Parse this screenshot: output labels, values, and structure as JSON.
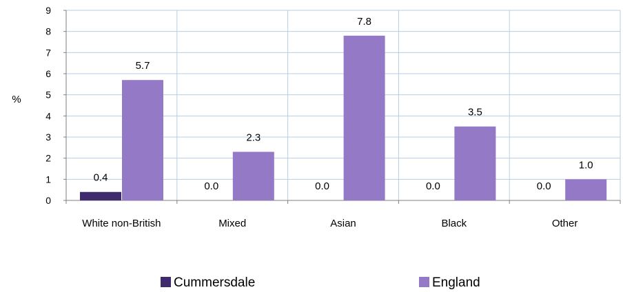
{
  "chart_data": {
    "type": "bar",
    "categories": [
      "White non-British",
      "Mixed",
      "Asian",
      "Black",
      "Other"
    ],
    "series": [
      {
        "name": "Cummersdale",
        "values": [
          0.4,
          0.0,
          0.0,
          0.0,
          0.0
        ],
        "labels": [
          "0.4",
          "0.0",
          "0.0",
          "0.0",
          "0.0"
        ],
        "color": "#3f2a6e"
      },
      {
        "name": "England",
        "values": [
          5.7,
          2.3,
          7.8,
          3.5,
          1.0
        ],
        "labels": [
          "5.7",
          "2.3",
          "7.8",
          "3.5",
          "1.0"
        ],
        "color": "#9479c6"
      }
    ],
    "ylabel": "%",
    "ylim": [
      0,
      9
    ],
    "yticks": [
      "0",
      "1",
      "2",
      "3",
      "4",
      "5",
      "6",
      "7",
      "8",
      "9"
    ],
    "grid": true,
    "gridColor": "#b8cce4",
    "legend_position": "bottom"
  }
}
